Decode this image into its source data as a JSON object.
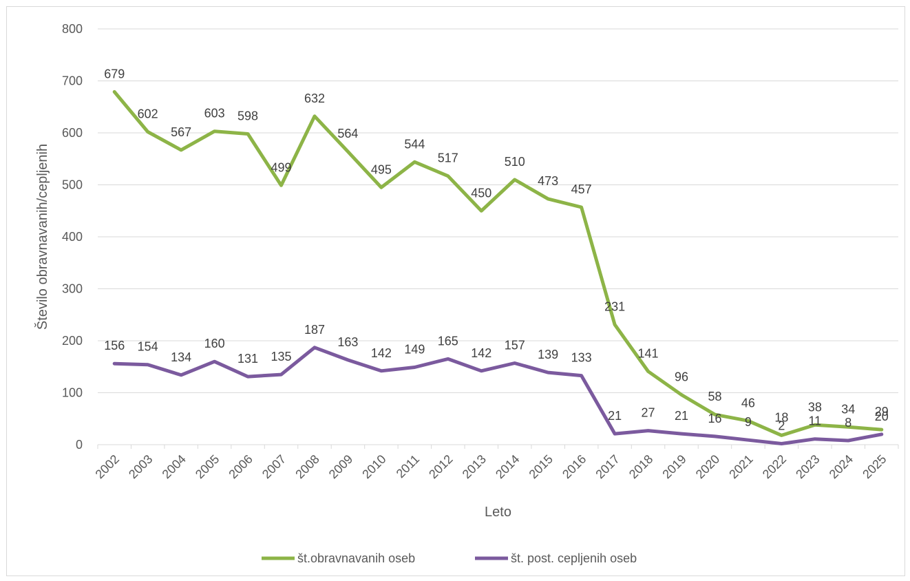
{
  "chart_data": {
    "type": "line",
    "title": "",
    "xlabel": "Leto",
    "ylabel": "Število obravnavanih/cepljenih",
    "ylim": [
      0,
      800
    ],
    "yticks": [
      0,
      100,
      200,
      300,
      400,
      500,
      600,
      700,
      800
    ],
    "grid": true,
    "legend_position": "bottom",
    "categories": [
      "2002",
      "2003",
      "2004",
      "2005",
      "2006",
      "2007",
      "2008",
      "2009",
      "2010",
      "2011",
      "2012",
      "2013",
      "2014",
      "2015",
      "2016",
      "2017",
      "2018",
      "2019",
      "2020",
      "2021",
      "2022",
      "2023",
      "2024",
      "2025"
    ],
    "series": [
      {
        "name": "št.obravnavanih oseb",
        "color": "#8db447",
        "values": [
          679,
          602,
          567,
          603,
          598,
          499,
          632,
          564,
          495,
          544,
          517,
          450,
          510,
          473,
          457,
          231,
          141,
          96,
          58,
          46,
          18,
          38,
          34,
          29
        ]
      },
      {
        "name": "št. post. cepljenih oseb",
        "color": "#7b5a9e",
        "values": [
          156,
          154,
          134,
          160,
          131,
          135,
          187,
          163,
          142,
          149,
          165,
          142,
          157,
          139,
          133,
          21,
          27,
          21,
          16,
          9,
          2,
          11,
          8,
          20
        ]
      }
    ]
  }
}
